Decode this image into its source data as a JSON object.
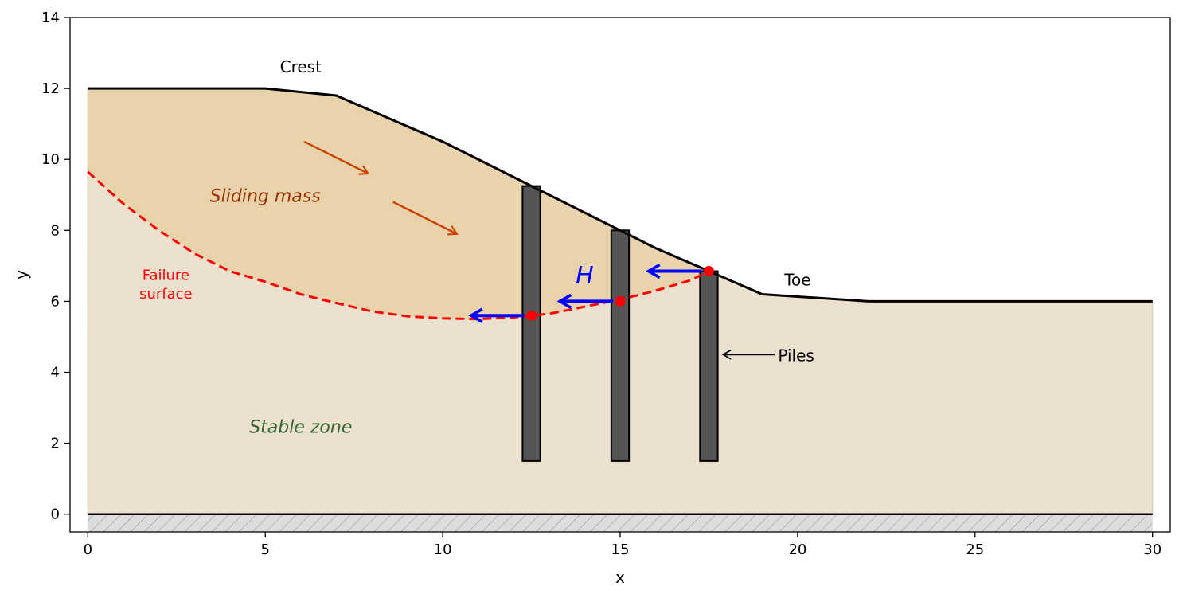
{
  "chart_data": {
    "type": "diagram",
    "xlabel": "x",
    "ylabel": "y",
    "xlim": [
      -0.5,
      30.5
    ],
    "ylim": [
      -0.5,
      14
    ],
    "xticks": [
      "0",
      "5",
      "10",
      "15",
      "20",
      "25",
      "30"
    ],
    "yticks": [
      "0",
      "2",
      "4",
      "6",
      "8",
      "10",
      "12",
      "14"
    ],
    "ground_surface": [
      [
        0,
        12
      ],
      [
        5,
        12
      ],
      [
        7,
        11.8
      ],
      [
        10,
        10.5
      ],
      [
        12.5,
        9.25
      ],
      [
        15,
        8
      ],
      [
        16,
        7.5
      ],
      [
        17.5,
        6.85
      ],
      [
        19,
        6.2
      ],
      [
        22,
        6
      ],
      [
        30,
        6
      ]
    ],
    "failure_surface": [
      [
        0,
        9.65
      ],
      [
        1,
        8.75
      ],
      [
        2,
        8
      ],
      [
        3,
        7.35
      ],
      [
        4,
        6.85
      ],
      [
        5,
        6.55
      ],
      [
        6,
        6.2
      ],
      [
        7,
        5.95
      ],
      [
        8,
        5.72
      ],
      [
        9,
        5.58
      ],
      [
        10,
        5.52
      ],
      [
        11,
        5.5
      ],
      [
        12,
        5.55
      ],
      [
        13,
        5.65
      ],
      [
        14,
        5.85
      ],
      [
        15,
        6.05
      ],
      [
        16,
        6.3
      ],
      [
        17,
        6.6
      ],
      [
        17.5,
        6.85
      ]
    ],
    "piles": [
      {
        "x": 12.5,
        "top": 9.25,
        "bottom": 1.5
      },
      {
        "x": 15,
        "top": 8,
        "bottom": 1.5
      },
      {
        "x": 17.5,
        "top": 6.85,
        "bottom": 1.5
      }
    ],
    "pile_points": [
      [
        12.5,
        5.6
      ],
      [
        15,
        6.0
      ],
      [
        17.5,
        6.85
      ]
    ],
    "force_arrows": [
      {
        "from": [
          12.3,
          5.6
        ],
        "to": [
          10.8,
          5.6
        ]
      },
      {
        "from": [
          14.8,
          6.0
        ],
        "to": [
          13.3,
          6.0
        ]
      },
      {
        "from": [
          17.3,
          6.85
        ],
        "to": [
          15.8,
          6.85
        ]
      }
    ],
    "movement_arrows": [
      {
        "from": [
          6.1,
          10.5
        ],
        "to": [
          7.9,
          9.6
        ]
      },
      {
        "from": [
          8.6,
          8.8
        ],
        "to": [
          10.4,
          7.9
        ]
      }
    ],
    "annotations": {
      "crest": "Crest",
      "toe": "Toe",
      "sliding_mass": "Sliding mass",
      "stable_zone": "Stable zone",
      "failure_surface_line1": "Failure",
      "failure_surface_line2": "surface",
      "piles": "Piles",
      "force": "H"
    },
    "colors": {
      "sliding_mass_fill": "#e9d3ad",
      "stable_fill": "#ece0cf",
      "failure_line": "#ff0000",
      "pile_fill": "#555555",
      "force_arrow": "#0000ff",
      "movement_arrow": "#cc4400",
      "sliding_text": "#993300",
      "stable_text": "#336633",
      "bedrock_fill": "#dddddd"
    }
  }
}
